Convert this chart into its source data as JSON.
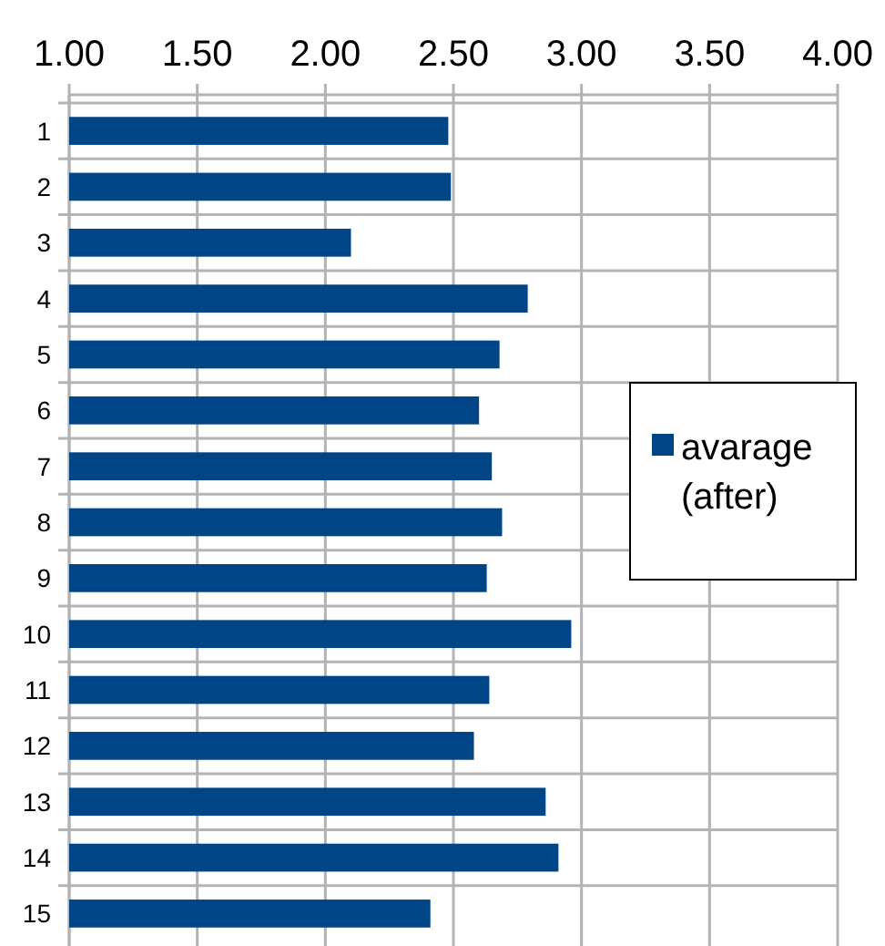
{
  "chart_data": {
    "type": "bar",
    "orientation": "horizontal",
    "categories": [
      "1",
      "2",
      "3",
      "4",
      "5",
      "6",
      "7",
      "8",
      "9",
      "10",
      "11",
      "12",
      "13",
      "14",
      "15"
    ],
    "series": [
      {
        "name": "avarage (after)",
        "color": "#004586",
        "values": [
          2.48,
          2.49,
          2.1,
          2.79,
          2.68,
          2.6,
          2.65,
          2.69,
          2.63,
          2.96,
          2.64,
          2.58,
          2.86,
          2.91,
          2.41
        ]
      }
    ],
    "xlim": [
      1,
      4
    ],
    "xticks": [
      {
        "value": 1,
        "label": "1.00"
      },
      {
        "value": 1.5,
        "label": "1.50"
      },
      {
        "value": 2,
        "label": "2.00"
      },
      {
        "value": 2.5,
        "label": "2.50"
      },
      {
        "value": 3,
        "label": "3.00"
      },
      {
        "value": 3.5,
        "label": "3.50"
      },
      {
        "value": 4,
        "label": "4.00"
      }
    ],
    "grid": true,
    "legend": "right"
  }
}
